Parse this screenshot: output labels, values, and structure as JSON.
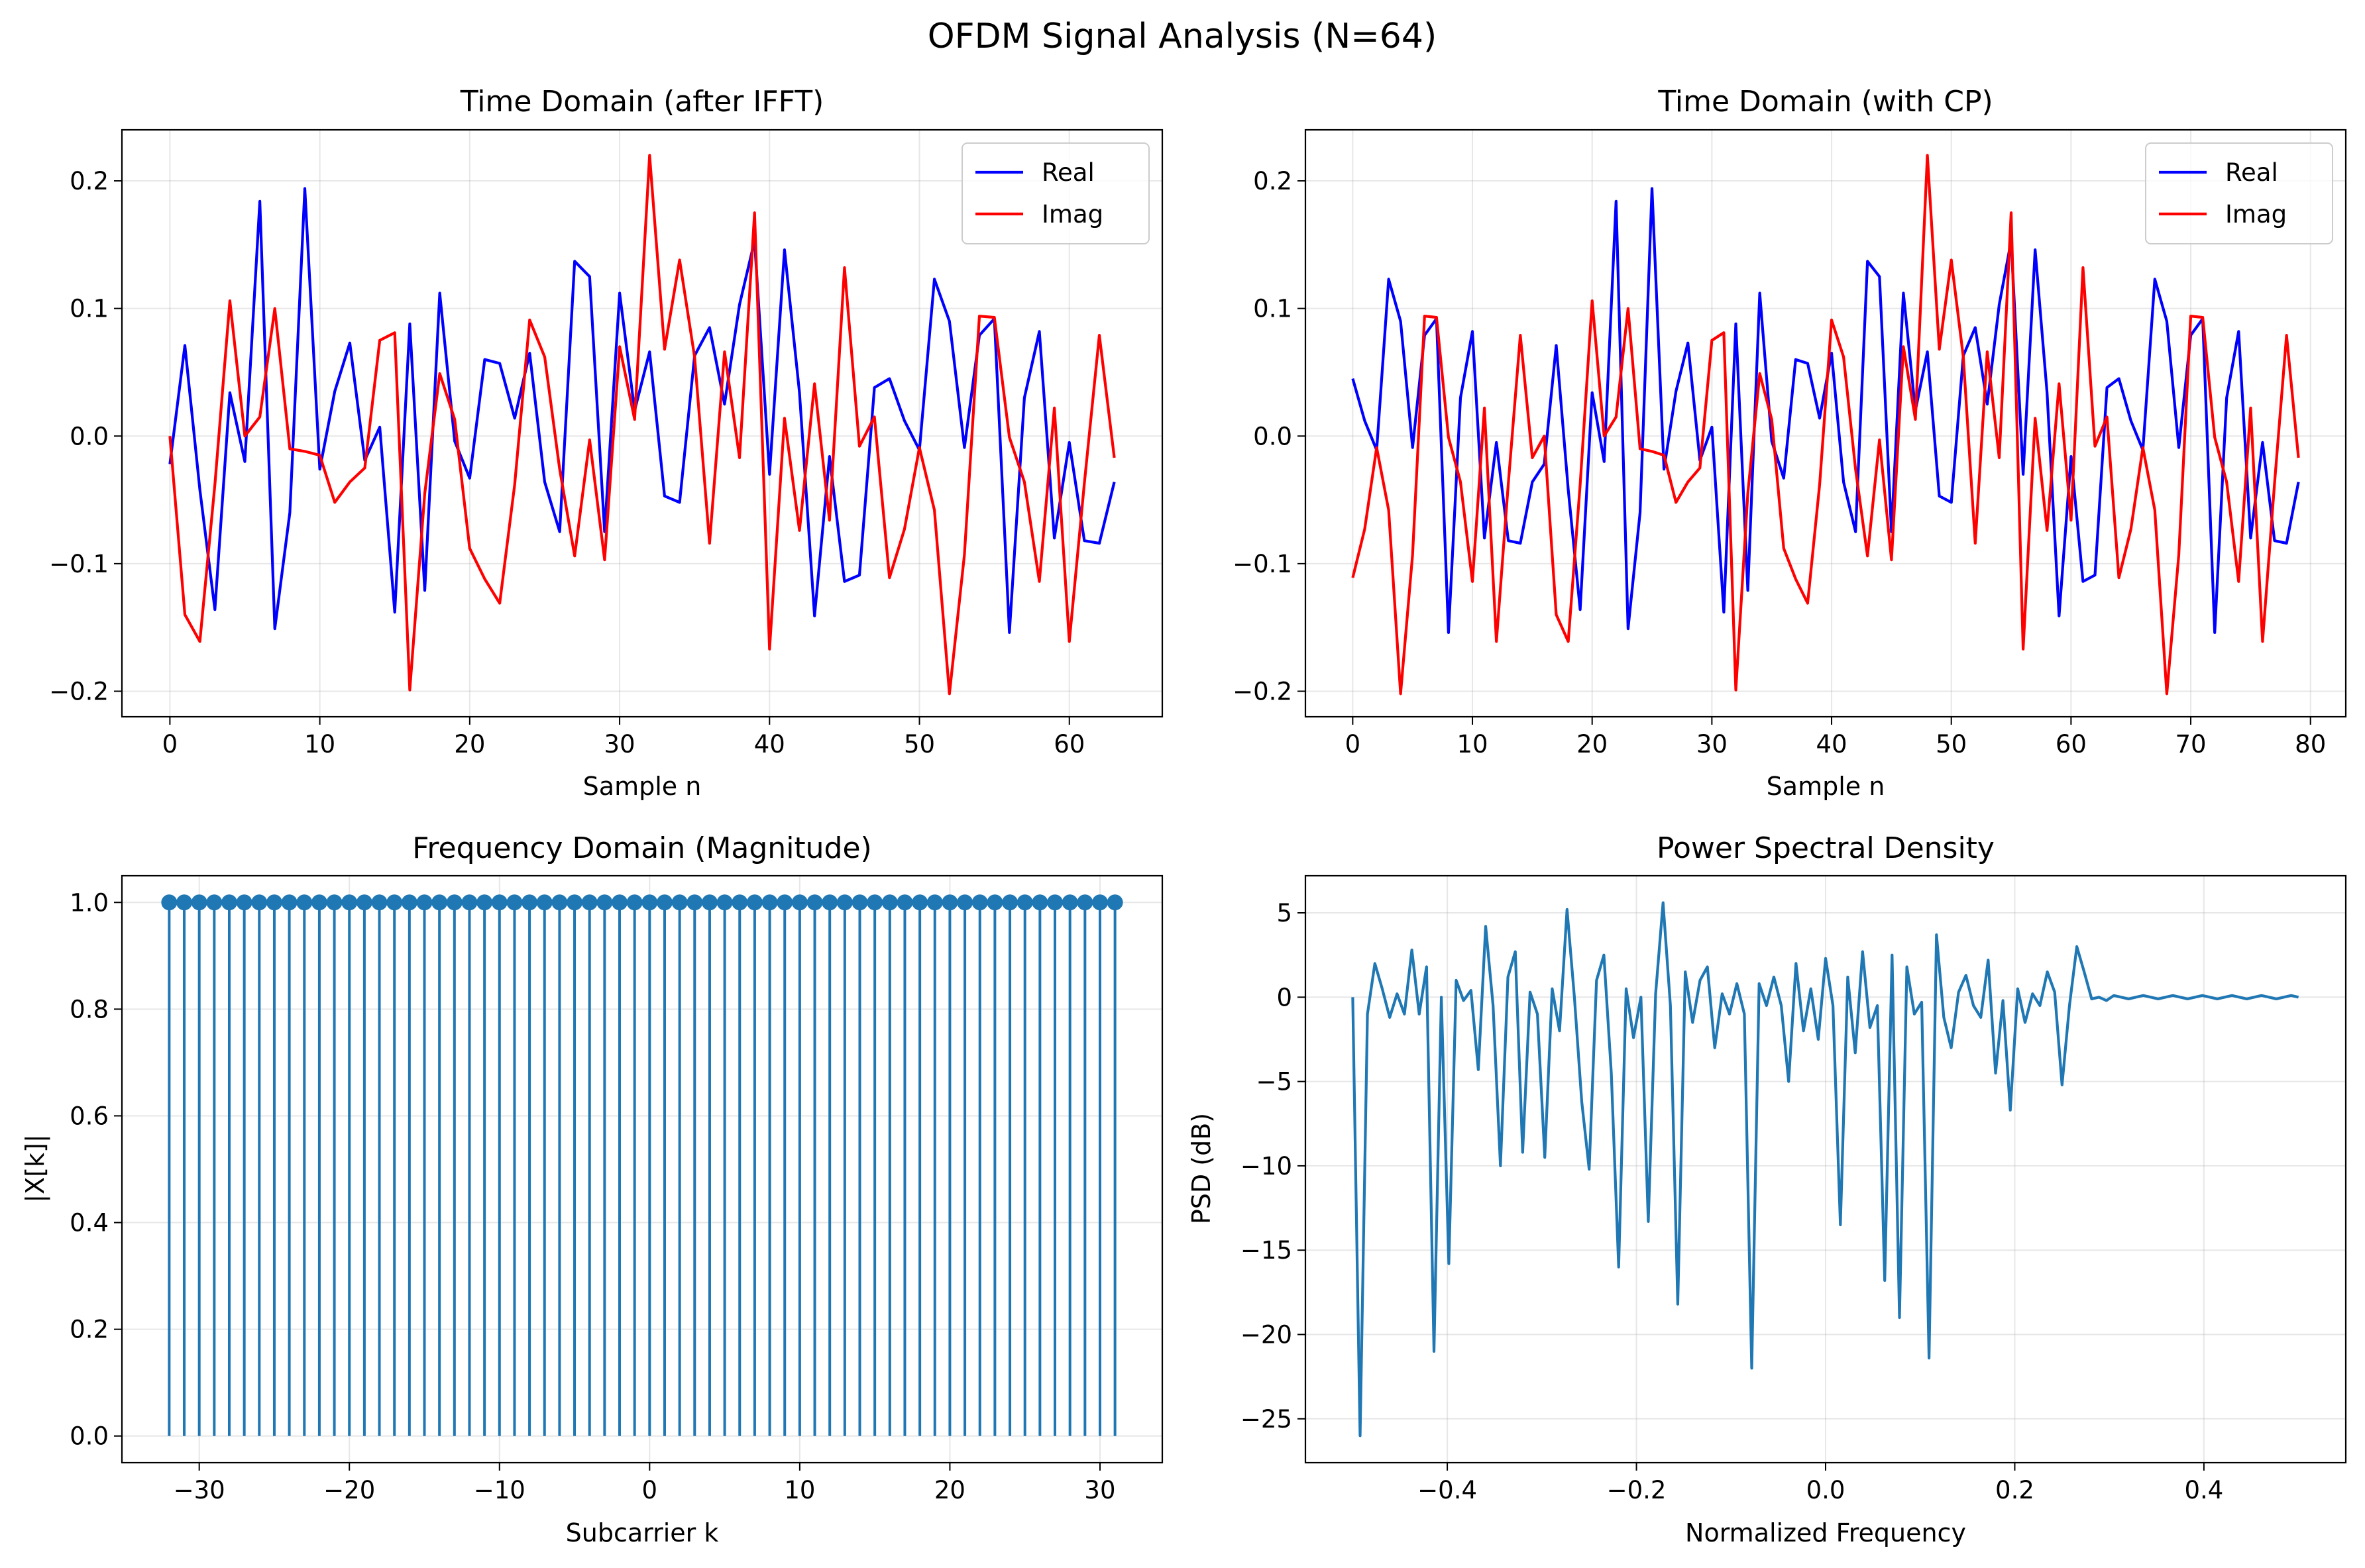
{
  "figure": {
    "title": "OFDM Signal Analysis (N=64)"
  },
  "colors": {
    "real": "#0000ff",
    "imag": "#ff0000",
    "stem": "#1f77b4",
    "psd": "#1f77b4"
  },
  "chart_data": [
    {
      "id": "time_ifft",
      "type": "line",
      "title": "Time Domain (after IFFT)",
      "xlabel": "Sample n",
      "ylabel": "",
      "xlim": [
        -3.2,
        66.2
      ],
      "ylim": [
        -0.22,
        0.24
      ],
      "xticks": [
        0,
        10,
        20,
        30,
        40,
        50,
        60
      ],
      "yticks": [
        -0.2,
        -0.1,
        0.0,
        0.1,
        0.2
      ],
      "xtick_labels": [
        "0",
        "10",
        "20",
        "30",
        "40",
        "50",
        "60"
      ],
      "ytick_labels": [
        "−0.2",
        "−0.1",
        "0.0",
        "0.1",
        "0.2"
      ],
      "grid": true,
      "legend": "top-right",
      "series": [
        {
          "name": "Real",
          "color": "#0000ff",
          "y": [
            -0.022,
            0.071,
            -0.042,
            -0.136,
            0.034,
            -0.02,
            0.184,
            -0.151,
            -0.06,
            0.194,
            -0.026,
            0.035,
            0.073,
            -0.019,
            0.007,
            -0.138,
            0.088,
            -0.121,
            0.112,
            -0.004,
            -0.033,
            0.06,
            0.057,
            0.014,
            0.065,
            -0.036,
            -0.075,
            0.137,
            0.125,
            -0.075,
            0.112,
            0.02,
            0.066,
            -0.047,
            -0.052,
            0.063,
            0.085,
            0.025,
            0.103,
            0.153,
            -0.03,
            0.146,
            0.034,
            -0.141,
            -0.016,
            -0.114,
            -0.109,
            0.038,
            0.045,
            0.012,
            -0.011,
            0.123,
            0.09,
            -0.009,
            0.079,
            0.092,
            -0.154,
            0.03,
            0.082,
            -0.08,
            -0.005,
            -0.082,
            -0.084,
            -0.036
          ]
        },
        {
          "name": "Imag",
          "color": "#ff0000",
          "y": [
            0.0,
            -0.14,
            -0.161,
            -0.038,
            0.106,
            0.0,
            0.015,
            0.1,
            -0.01,
            -0.012,
            -0.015,
            -0.052,
            -0.036,
            -0.025,
            0.075,
            0.081,
            -0.199,
            -0.045,
            0.049,
            0.013,
            -0.088,
            -0.112,
            -0.131,
            -0.038,
            0.091,
            0.062,
            -0.026,
            -0.094,
            -0.003,
            -0.097,
            0.07,
            0.013,
            0.22,
            0.068,
            0.138,
            0.062,
            -0.084,
            0.066,
            -0.017,
            0.175,
            -0.167,
            0.014,
            -0.074,
            0.041,
            -0.066,
            0.132,
            -0.008,
            0.015,
            -0.111,
            -0.073,
            -0.009,
            -0.058,
            -0.202,
            -0.093,
            0.094,
            0.093,
            -0.001,
            -0.036,
            -0.114,
            0.022,
            -0.161,
            -0.037,
            0.079,
            -0.017
          ]
        }
      ]
    },
    {
      "id": "time_cp",
      "type": "line",
      "title": "Time Domain (with CP)",
      "xlabel": "Sample n",
      "ylabel": "",
      "xlim": [
        -3.95,
        82.95
      ],
      "ylim": [
        -0.22,
        0.24
      ],
      "xticks": [
        0,
        10,
        20,
        30,
        40,
        50,
        60,
        70,
        80
      ],
      "yticks": [
        -0.2,
        -0.1,
        0.0,
        0.1,
        0.2
      ],
      "xtick_labels": [
        "0",
        "10",
        "20",
        "30",
        "40",
        "50",
        "60",
        "70",
        "80"
      ],
      "ytick_labels": [
        "−0.2",
        "−0.1",
        "0.0",
        "0.1",
        "0.2"
      ],
      "grid": true,
      "legend": "top-right",
      "series": [
        {
          "name": "Real",
          "color": "#0000ff",
          "y": [
            0.045,
            0.012,
            -0.011,
            0.123,
            0.09,
            -0.009,
            0.079,
            0.092,
            -0.154,
            0.03,
            0.082,
            -0.08,
            -0.005,
            -0.082,
            -0.084,
            -0.036,
            -0.022,
            0.071,
            -0.042,
            -0.136,
            0.034,
            -0.02,
            0.184,
            -0.151,
            -0.06,
            0.194,
            -0.026,
            0.035,
            0.073,
            -0.019,
            0.007,
            -0.138,
            0.088,
            -0.121,
            0.112,
            -0.004,
            -0.033,
            0.06,
            0.057,
            0.014,
            0.065,
            -0.036,
            -0.075,
            0.137,
            0.125,
            -0.075,
            0.112,
            0.02,
            0.066,
            -0.047,
            -0.052,
            0.063,
            0.085,
            0.025,
            0.103,
            0.153,
            -0.03,
            0.146,
            0.034,
            -0.141,
            -0.016,
            -0.114,
            -0.109,
            0.038,
            0.045,
            0.012,
            -0.011,
            0.123,
            0.09,
            -0.009,
            0.079,
            0.092,
            -0.154,
            0.03,
            0.082,
            -0.08,
            -0.005,
            -0.082,
            -0.084,
            -0.036
          ]
        },
        {
          "name": "Imag",
          "color": "#ff0000",
          "y": [
            -0.111,
            -0.073,
            -0.009,
            -0.058,
            -0.202,
            -0.093,
            0.094,
            0.093,
            -0.001,
            -0.036,
            -0.114,
            0.022,
            -0.161,
            -0.037,
            0.079,
            -0.017,
            0.0,
            -0.14,
            -0.161,
            -0.038,
            0.106,
            0.0,
            0.015,
            0.1,
            -0.01,
            -0.012,
            -0.015,
            -0.052,
            -0.036,
            -0.025,
            0.075,
            0.081,
            -0.199,
            -0.045,
            0.049,
            0.013,
            -0.088,
            -0.112,
            -0.131,
            -0.038,
            0.091,
            0.062,
            -0.026,
            -0.094,
            -0.003,
            -0.097,
            0.07,
            0.013,
            0.22,
            0.068,
            0.138,
            0.062,
            -0.084,
            0.066,
            -0.017,
            0.175,
            -0.167,
            0.014,
            -0.074,
            0.041,
            -0.066,
            0.132,
            -0.008,
            0.015,
            -0.111,
            -0.073,
            -0.009,
            -0.058,
            -0.202,
            -0.093,
            0.094,
            0.093,
            -0.001,
            -0.036,
            -0.114,
            0.022,
            -0.161,
            -0.037,
            0.079,
            -0.017
          ]
        }
      ]
    },
    {
      "id": "freq_mag",
      "type": "stem",
      "title": "Frequency Domain (Magnitude)",
      "xlabel": "Subcarrier k",
      "ylabel": "|X[k]|",
      "xlim": [
        -35.15,
        34.15
      ],
      "ylim": [
        -0.05,
        1.05
      ],
      "xticks": [
        -30,
        -20,
        -10,
        0,
        10,
        20,
        30
      ],
      "yticks": [
        0.0,
        0.2,
        0.4,
        0.6,
        0.8,
        1.0
      ],
      "xtick_labels": [
        "−30",
        "−20",
        "−10",
        "0",
        "10",
        "20",
        "30"
      ],
      "ytick_labels": [
        "0.0",
        "0.2",
        "0.4",
        "0.6",
        "0.8",
        "1.0"
      ],
      "grid": true,
      "x_start": -32,
      "x_end": 31,
      "value": 1.0,
      "color": "#1f77b4"
    },
    {
      "id": "psd",
      "type": "line",
      "title": "Power Spectral Density",
      "xlabel": "Normalized Frequency",
      "ylabel": "PSD (dB)",
      "xlim": [
        -0.55,
        0.55
      ],
      "ylim": [
        -27.6,
        7.2
      ],
      "xticks": [
        -0.4,
        -0.2,
        0.0,
        0.2,
        0.4
      ],
      "yticks": [
        -25,
        -20,
        -15,
        -10,
        -5,
        0,
        5
      ],
      "xtick_labels": [
        "−0.4",
        "−0.2",
        "0.0",
        "0.2",
        "0.4"
      ],
      "ytick_labels": [
        "−25",
        "−20",
        "−15",
        "−10",
        "−5",
        "0",
        "5"
      ],
      "grid": true,
      "color": "#1f77b4",
      "x": [
        -0.5,
        -0.4922,
        -0.4844,
        -0.4766,
        -0.4688,
        -0.4609,
        -0.4531,
        -0.4453,
        -0.4375,
        -0.4297,
        -0.4219,
        -0.4141,
        -0.4063,
        -0.3984,
        -0.3906,
        -0.3828,
        -0.375,
        -0.3672,
        -0.3594,
        -0.3516,
        -0.3438,
        -0.3359,
        -0.3281,
        -0.3203,
        -0.3125,
        -0.3047,
        -0.2969,
        -0.2891,
        -0.2813,
        -0.2734,
        -0.2656,
        -0.2578,
        -0.25,
        -0.2422,
        -0.2344,
        -0.2266,
        -0.2188,
        -0.2109,
        -0.2031,
        -0.1953,
        -0.1875,
        -0.1797,
        -0.1719,
        -0.1641,
        -0.1563,
        -0.1484,
        -0.1406,
        -0.1328,
        -0.125,
        -0.1172,
        -0.1094,
        -0.1016,
        -0.0938,
        -0.0859,
        -0.0781,
        -0.0703,
        -0.0625,
        -0.0547,
        -0.0469,
        -0.0391,
        -0.0313,
        -0.0234,
        -0.0156,
        -0.0078,
        0.0,
        0.0078,
        0.0156,
        0.0234,
        0.0313,
        0.0391,
        0.0469,
        0.0547,
        0.0625,
        0.0703,
        0.0781,
        0.0859,
        0.0938,
        0.1016,
        0.1094,
        0.1172,
        0.125,
        0.1328,
        0.1406,
        0.1484,
        0.1563,
        0.1641,
        0.1719,
        0.1797,
        0.1875,
        0.1953,
        0.2031,
        0.2109,
        0.2188,
        0.2266,
        0.2344,
        0.2422,
        0.25,
        0.2578,
        0.2656,
        0.2734,
        0.2813,
        0.2891,
        0.2969,
        0.3047,
        0.3125,
        0.3203,
        0.3281,
        0.3359,
        0.3438,
        0.3516,
        0.3594,
        0.3672,
        0.375,
        0.3828,
        0.3906,
        0.3984,
        0.4063,
        0.4141,
        0.4219,
        0.4297,
        0.4375,
        0.4453,
        0.4531,
        0.4609,
        0.4688,
        0.4766,
        0.4844,
        0.4922,
        0.5
      ],
      "y": [
        0.0,
        -26.0,
        -1.0,
        2.0,
        0.5,
        -1.2,
        0.2,
        -1.0,
        2.8,
        -1.0,
        1.8,
        -21.0,
        0.0,
        -15.8,
        1.0,
        -0.2,
        0.4,
        -4.3,
        4.2,
        -0.5,
        -10.0,
        1.2,
        2.7,
        -9.2,
        0.3,
        -1.0,
        -9.5,
        0.5,
        -2.0,
        5.2,
        0.0,
        -6.2,
        -10.2,
        1.0,
        2.5,
        -4.5,
        -16.0,
        0.5,
        -2.4,
        0.0,
        -13.3,
        0.2,
        5.6,
        -0.5,
        -18.2,
        1.5,
        -1.5,
        1.0,
        1.8,
        -3.0,
        0.2,
        -1.0,
        0.8,
        -1.0,
        -22.0,
        0.8,
        -0.5,
        1.2,
        -0.5,
        -5.0,
        2.0,
        -2.0,
        0.5,
        -2.5,
        2.3,
        -0.5,
        -13.5,
        1.2,
        -3.3,
        2.7,
        -1.8,
        -0.5,
        -16.8,
        2.5,
        -19.0,
        1.8,
        -1.0,
        -0.3,
        -21.4,
        3.7,
        -1.2,
        -3.0,
        0.3,
        1.3,
        -0.5,
        -1.2,
        2.2,
        -4.5,
        -0.2,
        -6.7,
        0.5,
        -1.5,
        0.2,
        -0.5,
        1.5,
        0.3,
        -5.2,
        -0.5,
        3.0,
        1.5,
        -0.1,
        0.0,
        -0.2,
        0.1,
        0.0,
        -0.1,
        0.0,
        0.1,
        0.0,
        -0.1,
        0.0,
        0.1,
        0.0,
        -0.1,
        0.0,
        0.1,
        0.0,
        -0.1,
        0.0,
        0.1,
        0.0,
        -0.1,
        0.0,
        0.1,
        0.0,
        -0.1,
        0.0,
        0.1,
        0.0
      ]
    }
  ]
}
